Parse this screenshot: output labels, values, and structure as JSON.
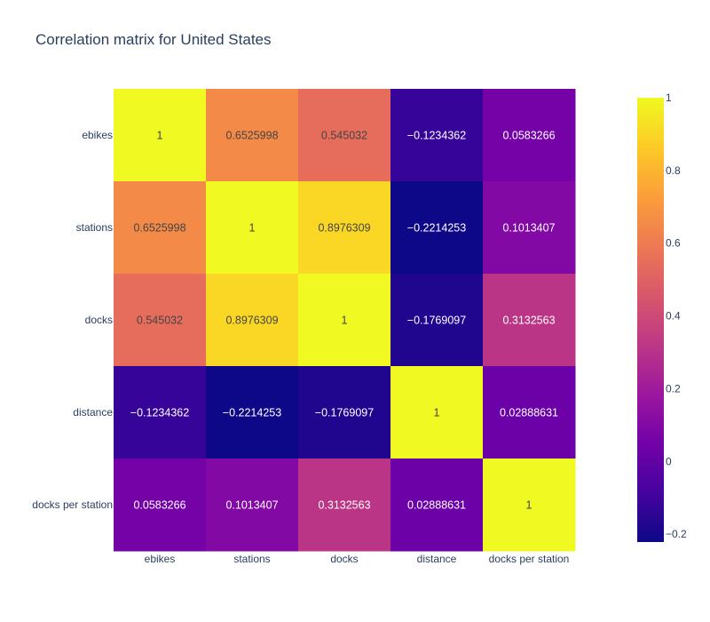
{
  "chart_data": {
    "type": "heatmap",
    "title": "Correlation matrix for United States",
    "x_categories": [
      "ebikes",
      "stations",
      "docks",
      "distance",
      "docks per station"
    ],
    "y_categories": [
      "ebikes",
      "stations",
      "docks",
      "distance",
      "docks per station"
    ],
    "values": [
      [
        1,
        0.6525998,
        0.545032,
        -0.1234362,
        0.0583266
      ],
      [
        0.6525998,
        1,
        0.8976309,
        -0.2214253,
        0.1013407
      ],
      [
        0.545032,
        0.8976309,
        1,
        -0.1769097,
        0.3132563
      ],
      [
        -0.1234362,
        -0.2214253,
        -0.1769097,
        1,
        0.02888631
      ],
      [
        0.0583266,
        0.1013407,
        0.3132563,
        0.02888631,
        1
      ]
    ],
    "labels": [
      [
        "1",
        "0.6525998",
        "0.545032",
        "−0.1234362",
        "0.0583266"
      ],
      [
        "0.6525998",
        "1",
        "0.8976309",
        "−0.2214253",
        "0.1013407"
      ],
      [
        "0.545032",
        "0.8976309",
        "1",
        "−0.1769097",
        "0.3132563"
      ],
      [
        "−0.1234362",
        "−0.2214253",
        "−0.1769097",
        "1",
        "0.02888631"
      ],
      [
        "0.0583266",
        "0.1013407",
        "0.3132563",
        "0.02888631",
        "1"
      ]
    ],
    "zmin": -0.2214253,
    "zmax": 1,
    "colorscale": [
      "#0d0887",
      "#46039f",
      "#7201a8",
      "#9c179e",
      "#bd3786",
      "#d8576b",
      "#ed7953",
      "#fb9f3a",
      "#fdca26",
      "#f0f921"
    ],
    "colorbar_ticks": [
      1,
      0.8,
      0.6,
      0.4,
      0.2,
      0,
      -0.2
    ],
    "colorbar_tick_labels": [
      "1",
      "0.8",
      "0.6",
      "0.4",
      "0.2",
      "0",
      "−0.2"
    ],
    "text_colors": {
      "dark": "#444444",
      "light": "#ffffff"
    }
  }
}
